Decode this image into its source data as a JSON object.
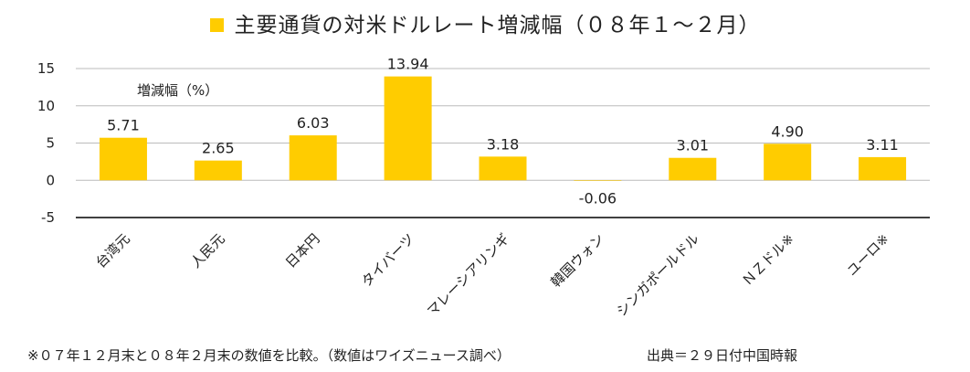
{
  "title": "主要通貨の対米ドルレート増減幅（０８年１～２月）",
  "unit_label": "増減幅（%）",
  "footnote": "※０７年１２月末と０８年２月末の数値を比較。（数値はワイズニュース調べ）",
  "source": "出典＝２９日付中国時報",
  "colors": {
    "bar": "#FFCC00",
    "grid": "#BBBBBB",
    "axis": "#000000"
  },
  "chart_data": {
    "type": "bar",
    "title": "主要通貨の対米ドルレート増減幅（０８年１～２月）",
    "ylabel": "増減幅（%）",
    "xlabel": "",
    "categories": [
      "台湾元",
      "人民元",
      "日本円",
      "タイバーツ",
      "マレーシアリンギ",
      "韓国ウォン",
      "シンガポールドル",
      "ＮＺドル※",
      "ユーロ※"
    ],
    "series": [
      {
        "name": "主要通貨の対米ドルレート増減幅（０８年１～２月）",
        "values": [
          5.71,
          2.65,
          6.03,
          13.94,
          3.18,
          -0.06,
          3.01,
          4.9,
          3.11
        ]
      }
    ],
    "value_labels": [
      "5.71",
      "2.65",
      "6.03",
      "13.94",
      "3.18",
      "-0.06",
      "3.01",
      "4.90",
      "3.11"
    ],
    "ylim": [
      -5,
      15
    ],
    "yticks": [
      "15",
      "10",
      "5",
      "0",
      "-5"
    ],
    "ytick_values": [
      15,
      10,
      5,
      0,
      -5
    ],
    "grid": true,
    "legend": "top"
  }
}
